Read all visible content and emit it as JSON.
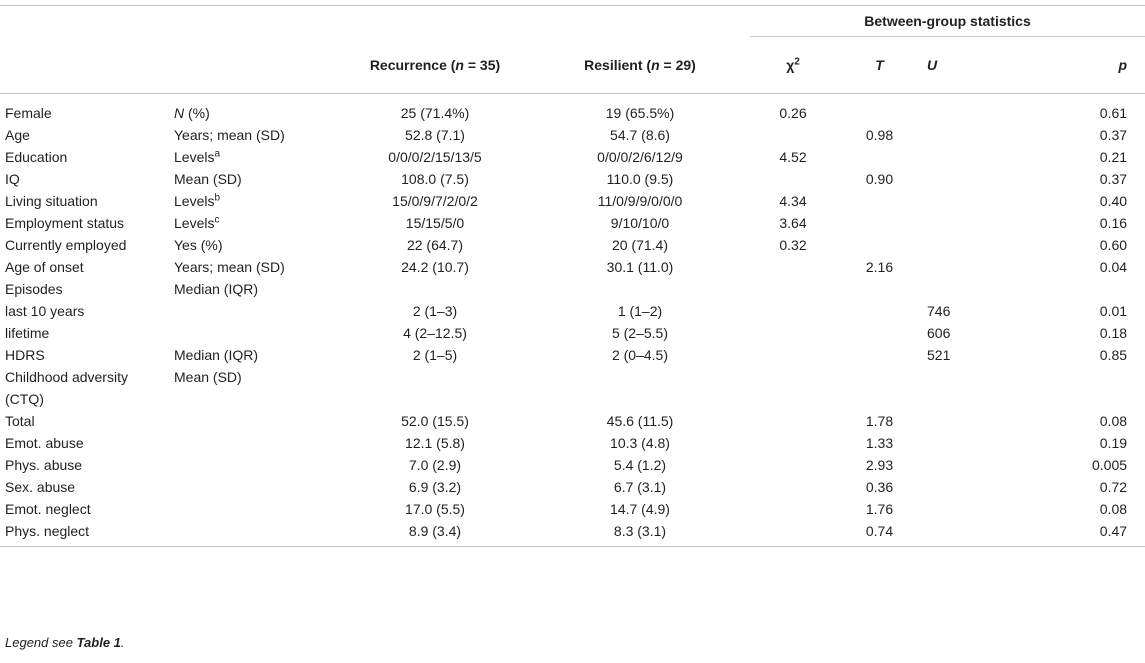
{
  "header": {
    "group_label": "Between-group statistics",
    "recurrence_pre": "Recurrence (",
    "recurrence_n": "n",
    "recurrence_post": " = 35)",
    "resilient_pre": "Resilient (",
    "resilient_n": "n",
    "resilient_post": " = 29)",
    "chi_base": "χ",
    "chi_sup": "2",
    "t": "T",
    "u": "U",
    "p": "p"
  },
  "rows": [
    {
      "var": "Female",
      "unit_pre": "N",
      "unit_post": " (%)",
      "unit_sup": "",
      "rec": "25 (71.4%)",
      "res": "19 (65.5%)",
      "chi": "0.26",
      "t": "",
      "u": "",
      "p": "0.61"
    },
    {
      "var": "Age",
      "unit_pre": "",
      "unit_post": "Years; mean (SD)",
      "unit_sup": "",
      "rec": "52.8 (7.1)",
      "res": "54.7 (8.6)",
      "chi": "",
      "t": "0.98",
      "u": "",
      "p": "0.37"
    },
    {
      "var": "Education",
      "unit_pre": "",
      "unit_post": "Levels",
      "unit_sup": "a",
      "rec": "0/0/0/2/15/13/5",
      "res": "0/0/0/2/6/12/9",
      "chi": "4.52",
      "t": "",
      "u": "",
      "p": "0.21"
    },
    {
      "var": "IQ",
      "unit_pre": "",
      "unit_post": "Mean (SD)",
      "unit_sup": "",
      "rec": "108.0 (7.5)",
      "res": "110.0 (9.5)",
      "chi": "",
      "t": "0.90",
      "u": "",
      "p": "0.37"
    },
    {
      "var": "Living situation",
      "unit_pre": "",
      "unit_post": "Levels",
      "unit_sup": "b",
      "rec": "15/0/9/7/2/0/2",
      "res": "11/0/9/9/0/0/0",
      "chi": "4.34",
      "t": "",
      "u": "",
      "p": "0.40"
    },
    {
      "var": "Employment status",
      "unit_pre": "",
      "unit_post": "Levels",
      "unit_sup": "c",
      "rec": "15/15/5/0",
      "res": "9/10/10/0",
      "chi": "3.64",
      "t": "",
      "u": "",
      "p": "0.16"
    },
    {
      "var": "Currently employed",
      "unit_pre": "",
      "unit_post": "Yes (%)",
      "unit_sup": "",
      "rec": "22 (64.7)",
      "res": "20 (71.4)",
      "chi": "0.32",
      "t": "",
      "u": "",
      "p": "0.60"
    },
    {
      "var": "Age of onset",
      "unit_pre": "",
      "unit_post": "Years; mean (SD)",
      "unit_sup": "",
      "rec": "24.2 (10.7)",
      "res": "30.1 (11.0)",
      "chi": "",
      "t": "2.16",
      "u": "",
      "p": "0.04"
    },
    {
      "var": "Episodes",
      "unit_pre": "",
      "unit_post": "Median (IQR)",
      "unit_sup": "",
      "rec": "",
      "res": "",
      "chi": "",
      "t": "",
      "u": "",
      "p": ""
    },
    {
      "var": "last 10 years",
      "unit_pre": "",
      "unit_post": "",
      "unit_sup": "",
      "rec": "2 (1–3)",
      "res": "1 (1–2)",
      "chi": "",
      "t": "",
      "u": "746",
      "p": "0.01"
    },
    {
      "var": "lifetime",
      "unit_pre": "",
      "unit_post": "",
      "unit_sup": "",
      "rec": "4 (2–12.5)",
      "res": "5 (2–5.5)",
      "chi": "",
      "t": "",
      "u": "606",
      "p": "0.18"
    },
    {
      "var": "HDRS",
      "unit_pre": "",
      "unit_post": "Median (IQR)",
      "unit_sup": "",
      "rec": "2 (1–5)",
      "res": "2 (0–4.5)",
      "chi": "",
      "t": "",
      "u": "521",
      "p": "0.85"
    },
    {
      "var": "Childhood adversity (CTQ)",
      "unit_pre": "",
      "unit_post": "Mean (SD)",
      "unit_sup": "",
      "rec": "",
      "res": "",
      "chi": "",
      "t": "",
      "u": "",
      "p": ""
    },
    {
      "var": "Total",
      "unit_pre": "",
      "unit_post": "",
      "unit_sup": "",
      "rec": "52.0 (15.5)",
      "res": "45.6 (11.5)",
      "chi": "",
      "t": "1.78",
      "u": "",
      "p": "0.08"
    },
    {
      "var": "Emot. abuse",
      "unit_pre": "",
      "unit_post": "",
      "unit_sup": "",
      "rec": "12.1 (5.8)",
      "res": "10.3 (4.8)",
      "chi": "",
      "t": "1.33",
      "u": "",
      "p": "0.19"
    },
    {
      "var": "Phys. abuse",
      "unit_pre": "",
      "unit_post": "",
      "unit_sup": "",
      "rec": "7.0 (2.9)",
      "res": "5.4 (1.2)",
      "chi": "",
      "t": "2.93",
      "u": "",
      "p": "0.005"
    },
    {
      "var": "Sex. abuse",
      "unit_pre": "",
      "unit_post": "",
      "unit_sup": "",
      "rec": "6.9 (3.2)",
      "res": "6.7 (3.1)",
      "chi": "",
      "t": "0.36",
      "u": "",
      "p": "0.72"
    },
    {
      "var": "Emot. neglect",
      "unit_pre": "",
      "unit_post": "",
      "unit_sup": "",
      "rec": "17.0 (5.5)",
      "res": "14.7 (4.9)",
      "chi": "",
      "t": "1.76",
      "u": "",
      "p": "0.08"
    },
    {
      "var": "Phys. neglect",
      "unit_pre": "",
      "unit_post": "",
      "unit_sup": "",
      "rec": "8.9 (3.4)",
      "res": "8.3 (3.1)",
      "chi": "",
      "t": "0.74",
      "u": "",
      "p": "0.47"
    }
  ],
  "legend": {
    "pre": "Legend see ",
    "ref": "Table 1",
    "post": "."
  }
}
